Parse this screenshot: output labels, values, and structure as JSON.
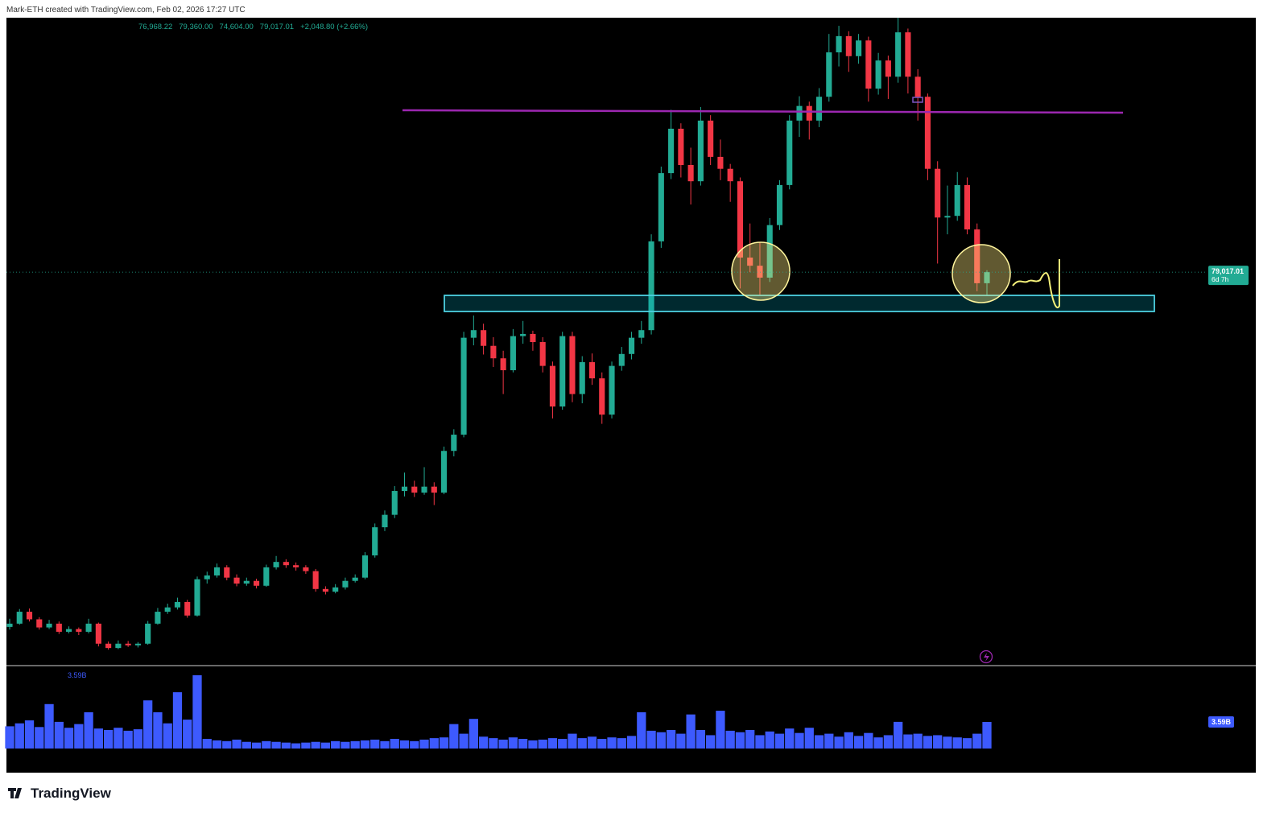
{
  "header": {
    "credit": "Mark-ETH created with TradingView.com, Feb 02, 2026 17:27 UTC"
  },
  "footer": {
    "brand": "TradingView"
  },
  "chart_data": {
    "type": "candlestick",
    "ohlc_labels": [
      "76,968.22",
      "79,360.00",
      "74,604.00",
      "79,017.01",
      "+2,048.80 (+2.66%)"
    ],
    "last_price_label": "79,017.01",
    "countdown": "6d 7h",
    "up_color": "#22ab94",
    "down_color": "#f23645",
    "ylim": [
      6500,
      126000
    ],
    "candles": [
      [
        13500,
        15000,
        13000,
        14100
      ],
      [
        14100,
        16800,
        13900,
        16300
      ],
      [
        16300,
        16900,
        14500,
        14900
      ],
      [
        14900,
        15300,
        13000,
        13400
      ],
      [
        13400,
        14800,
        13100,
        14100
      ],
      [
        14100,
        14500,
        12200,
        12600
      ],
      [
        12600,
        13600,
        12300,
        13100
      ],
      [
        13100,
        13400,
        12000,
        12600
      ],
      [
        12600,
        15000,
        12300,
        14100
      ],
      [
        14100,
        14300,
        9900,
        10400
      ],
      [
        10400,
        10800,
        9300,
        9600
      ],
      [
        9600,
        11000,
        9400,
        10400
      ],
      [
        10400,
        10900,
        9800,
        10100
      ],
      [
        10100,
        10700,
        9700,
        10400
      ],
      [
        10400,
        14600,
        10200,
        14100
      ],
      [
        14100,
        17000,
        13900,
        16300
      ],
      [
        16300,
        17800,
        15900,
        17100
      ],
      [
        17100,
        18900,
        16700,
        18100
      ],
      [
        18100,
        18500,
        15200,
        15600
      ],
      [
        15600,
        22800,
        15400,
        22300
      ],
      [
        22300,
        23700,
        21500,
        23000
      ],
      [
        23000,
        25200,
        22600,
        24500
      ],
      [
        24500,
        24900,
        22100,
        22600
      ],
      [
        22600,
        23200,
        21000,
        21500
      ],
      [
        21500,
        22600,
        21100,
        22000
      ],
      [
        22000,
        22400,
        20600,
        21100
      ],
      [
        21100,
        25000,
        20900,
        24500
      ],
      [
        24500,
        26600,
        24100,
        25500
      ],
      [
        25500,
        26000,
        24400,
        24900
      ],
      [
        24900,
        25400,
        23900,
        24500
      ],
      [
        24500,
        24900,
        23300,
        23800
      ],
      [
        23800,
        24200,
        20000,
        20500
      ],
      [
        20500,
        21000,
        19500,
        20000
      ],
      [
        20000,
        21400,
        19700,
        20800
      ],
      [
        20800,
        22600,
        20400,
        22000
      ],
      [
        22000,
        23200,
        21700,
        22600
      ],
      [
        22600,
        27300,
        22300,
        26700
      ],
      [
        26700,
        32600,
        26300,
        31900
      ],
      [
        31900,
        35000,
        31200,
        34200
      ],
      [
        34200,
        39500,
        33600,
        38600
      ],
      [
        38600,
        42000,
        37600,
        39400
      ],
      [
        39400,
        40500,
        37500,
        38300
      ],
      [
        38300,
        43000,
        37900,
        39400
      ],
      [
        39400,
        40200,
        36000,
        38300
      ],
      [
        38300,
        46800,
        38000,
        46000
      ],
      [
        46000,
        50000,
        45000,
        49000
      ],
      [
        49000,
        68000,
        48500,
        66900
      ],
      [
        66900,
        71000,
        65500,
        68300
      ],
      [
        68300,
        69500,
        63800,
        65400
      ],
      [
        65400,
        67000,
        61500,
        63100
      ],
      [
        63100,
        64500,
        56500,
        60900
      ],
      [
        60900,
        68500,
        60500,
        67200
      ],
      [
        67200,
        70000,
        65800,
        67600
      ],
      [
        67600,
        68200,
        64500,
        66100
      ],
      [
        66100,
        67000,
        60500,
        61700
      ],
      [
        61700,
        62500,
        52000,
        54200
      ],
      [
        54200,
        68000,
        53600,
        67200
      ],
      [
        67200,
        68000,
        55000,
        56500
      ],
      [
        56500,
        63500,
        54800,
        62400
      ],
      [
        62400,
        64000,
        58200,
        59400
      ],
      [
        59400,
        60500,
        51000,
        52700
      ],
      [
        52700,
        62500,
        52000,
        61700
      ],
      [
        61700,
        65200,
        60800,
        63900
      ],
      [
        63900,
        68000,
        62900,
        66900
      ],
      [
        66900,
        70000,
        65800,
        68300
      ],
      [
        68300,
        86000,
        67500,
        84700
      ],
      [
        84700,
        98500,
        83500,
        97300
      ],
      [
        97300,
        109000,
        96200,
        105500
      ],
      [
        105500,
        106500,
        96500,
        98800
      ],
      [
        98800,
        102000,
        91500,
        95800
      ],
      [
        95800,
        109500,
        95000,
        107000
      ],
      [
        107000,
        108000,
        98800,
        100300
      ],
      [
        100300,
        103500,
        96000,
        98100
      ],
      [
        98100,
        99000,
        92000,
        95800
      ],
      [
        95800,
        96500,
        76000,
        81700
      ],
      [
        81700,
        88000,
        79000,
        80200
      ],
      [
        80200,
        84500,
        74800,
        78000
      ],
      [
        78000,
        89000,
        77200,
        87700
      ],
      [
        87700,
        96000,
        86800,
        95100
      ],
      [
        95100,
        108000,
        94300,
        107000
      ],
      [
        107000,
        111500,
        104000,
        109700
      ],
      [
        109700,
        110500,
        103500,
        107000
      ],
      [
        107000,
        113000,
        105800,
        111400
      ],
      [
        111400,
        123000,
        110500,
        119600
      ],
      [
        119600,
        124500,
        117000,
        122600
      ],
      [
        122600,
        123500,
        116000,
        118900
      ],
      [
        118900,
        123000,
        117500,
        121800
      ],
      [
        121800,
        122500,
        110500,
        112900
      ],
      [
        112900,
        119500,
        111800,
        118100
      ],
      [
        118100,
        119000,
        111000,
        115100
      ],
      [
        115100,
        126000,
        114000,
        123300
      ],
      [
        123300,
        124000,
        112000,
        115100
      ],
      [
        115100,
        116500,
        107000,
        111400
      ],
      [
        111400,
        112000,
        96000,
        98100
      ],
      [
        98100,
        99500,
        80600,
        89100
      ],
      [
        89100,
        95000,
        86000,
        89400
      ],
      [
        89400,
        97500,
        88500,
        95100
      ],
      [
        95100,
        96500,
        86000,
        86900
      ],
      [
        86900,
        88000,
        75500,
        76968.21
      ],
      [
        76968.22,
        79360,
        74604,
        79017.01
      ]
    ],
    "volume": {
      "color": "#3d5afe",
      "ylim": [
        0,
        10
      ],
      "value_label": "3.59B",
      "values": [
        3.0,
        3.4,
        3.8,
        2.9,
        6.0,
        3.6,
        2.8,
        3.3,
        4.9,
        2.7,
        2.5,
        2.8,
        2.4,
        2.6,
        6.5,
        4.9,
        3.4,
        7.6,
        3.9,
        9.9,
        1.3,
        1.1,
        1.0,
        1.2,
        0.9,
        0.8,
        1.0,
        0.9,
        0.8,
        0.7,
        0.8,
        0.9,
        0.8,
        1.0,
        0.9,
        1.0,
        1.1,
        1.2,
        1.0,
        1.3,
        1.1,
        1.0,
        1.2,
        1.4,
        1.5,
        3.3,
        2.0,
        4.0,
        1.6,
        1.4,
        1.2,
        1.5,
        1.3,
        1.1,
        1.2,
        1.4,
        1.3,
        2.0,
        1.4,
        1.6,
        1.3,
        1.5,
        1.4,
        1.7,
        4.9,
        2.4,
        2.2,
        2.5,
        2.0,
        4.6,
        2.5,
        1.8,
        5.1,
        2.4,
        2.2,
        2.5,
        1.8,
        2.3,
        2.0,
        2.7,
        2.1,
        2.8,
        1.8,
        2.0,
        1.6,
        2.2,
        1.7,
        2.1,
        1.5,
        1.8,
        3.6,
        1.9,
        2.0,
        1.7,
        1.8,
        1.6,
        1.5,
        1.4,
        2.0,
        3.59
      ]
    }
  }
}
